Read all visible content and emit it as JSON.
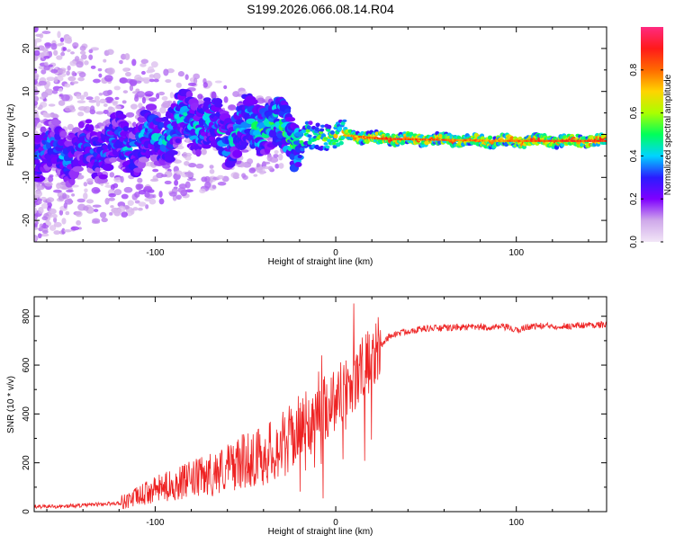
{
  "title": "S199.2026.066.08.14.R04",
  "colors": {
    "snr_line": "#ee2222",
    "frame": "#000000"
  },
  "chart_data": [
    {
      "type": "heatmap",
      "name": "spectrogram",
      "xlabel": "Height of straight line (km)",
      "ylabel": "Frequency (Hz)",
      "xlim": [
        -167,
        150
      ],
      "ylim": [
        -25,
        25
      ],
      "xticks": [
        -100,
        0,
        100
      ],
      "xtick_labels": [
        "-100",
        "0",
        "100"
      ],
      "yticks": [
        -20,
        -10,
        0,
        10,
        20
      ],
      "ytick_labels": [
        "-20",
        "-10",
        "0",
        "10",
        "20"
      ],
      "description_points": [
        {
          "x": -140,
          "freq": -4,
          "amp": 0.35
        },
        {
          "x": -100,
          "freq": -1,
          "amp": 0.4
        },
        {
          "x": -80,
          "freq": 4,
          "amp": 0.45
        },
        {
          "x": -60,
          "freq": 0,
          "amp": 0.4
        },
        {
          "x": -40,
          "freq": 3,
          "amp": 0.5
        },
        {
          "x": -20,
          "freq": -1,
          "amp": 0.5
        },
        {
          "x": 0,
          "freq": 0,
          "amp": 0.7
        },
        {
          "x": 25,
          "freq": -1,
          "amp": 0.9
        },
        {
          "x": 90,
          "freq": -1.5,
          "amp": 0.8
        },
        {
          "x": 125,
          "freq": -1.5,
          "amp": 0.9
        }
      ],
      "colorbar": {
        "label": "Normalized spectral amplitude",
        "range": [
          0,
          1
        ],
        "ticks": [
          0.0,
          0.2,
          0.4,
          0.6,
          0.8
        ],
        "tick_labels": [
          "0.0",
          "0.2",
          "0.4",
          "0.6",
          "0.8"
        ],
        "stops": [
          "#f2e6f7",
          "#cfa8ea",
          "#7f00ff",
          "#2a1cff",
          "#00d4ff",
          "#00ff5a",
          "#aaff00",
          "#ffd400",
          "#ff6a00",
          "#ff1a1a",
          "#ff2a80"
        ]
      }
    },
    {
      "type": "line",
      "name": "snr",
      "xlabel": "Height of straight line (km)",
      "ylabel": "SNR (10 * v/v)",
      "xlim": [
        -167,
        150
      ],
      "ylim": [
        0,
        880
      ],
      "xticks": [
        -100,
        0,
        100
      ],
      "xtick_labels": [
        "-100",
        "0",
        "100"
      ],
      "yticks": [
        0,
        200,
        400,
        600,
        800
      ],
      "ytick_labels": [
        "0",
        "200",
        "400",
        "600",
        "800"
      ],
      "series": [
        {
          "name": "SNR",
          "x": [
            -167,
            -150,
            -120,
            -110,
            -100,
            -90,
            -80,
            -70,
            -60,
            -50,
            -40,
            -35,
            -30,
            -25,
            -20,
            -15,
            -10,
            -5,
            0,
            5,
            10,
            15,
            20,
            25,
            30,
            40,
            50,
            60,
            70,
            80,
            90,
            95,
            100,
            105,
            110,
            120,
            130,
            140,
            150
          ],
          "values": [
            20,
            22,
            35,
            60,
            90,
            110,
            130,
            150,
            180,
            210,
            230,
            250,
            270,
            300,
            340,
            360,
            400,
            430,
            470,
            500,
            540,
            580,
            620,
            680,
            720,
            740,
            750,
            752,
            755,
            755,
            755,
            755,
            740,
            755,
            760,
            760,
            760,
            765,
            765
          ]
        }
      ]
    }
  ]
}
